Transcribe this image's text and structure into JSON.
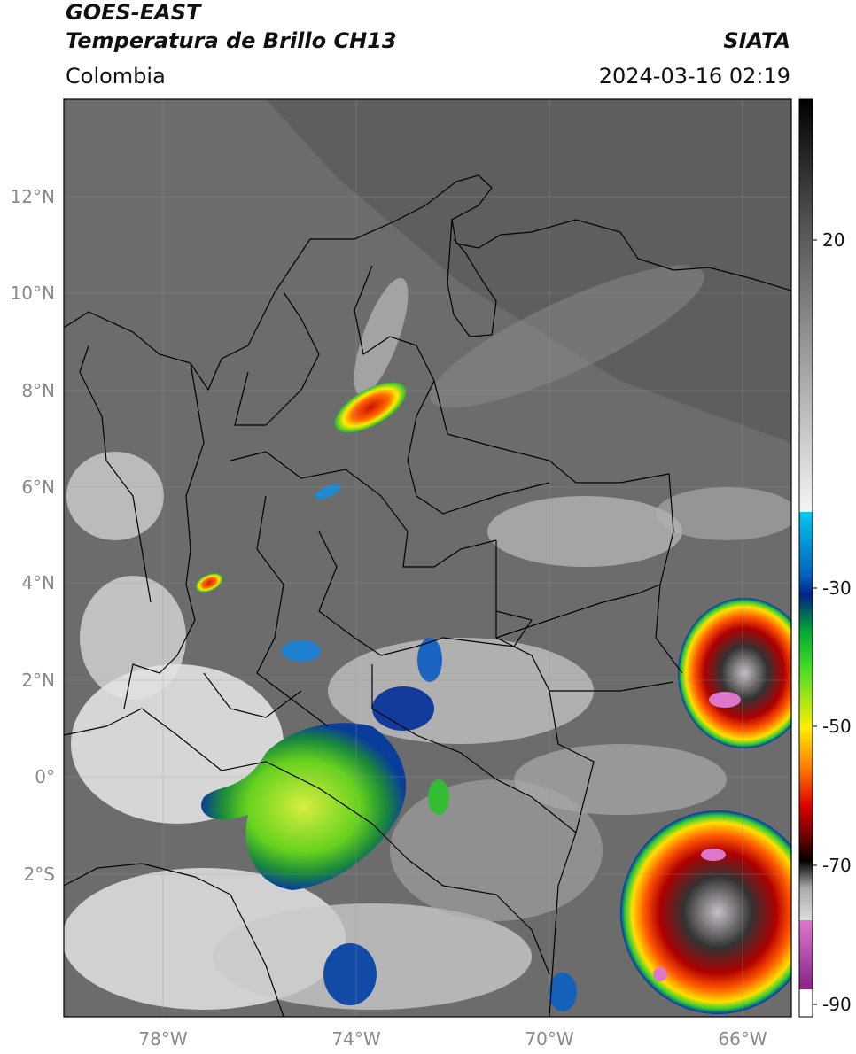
{
  "header": {
    "title_line1": "GOES-EAST",
    "title_line2": "Temperatura de Brillo CH13",
    "source": "SIATA",
    "region": "Colombia",
    "timestamp": "2024-03-16 02:19"
  },
  "axes": {
    "lat_labels": [
      "12°N",
      "10°N",
      "8°N",
      "6°N",
      "4°N",
      "2°N",
      "0°",
      "2°S"
    ],
    "lon_labels": [
      "78°W",
      "74°W",
      "70°W",
      "66°W"
    ]
  },
  "colorbar": {
    "tick_labels": [
      "20",
      "-30",
      "-50",
      "-70",
      "-90"
    ],
    "stops": [
      "#000000",
      "#777777",
      "#f5f5f5",
      "#00b8ee",
      "#003399",
      "#00cc33",
      "#ffee00",
      "#ff6600",
      "#cc0000",
      "#220000",
      "#cccccc",
      "#dd66cc",
      "#993399"
    ]
  },
  "colors": {
    "cold_cloud_green": "#7fdc1f",
    "cold_cloud_red": "#e02010",
    "border_line": "#000000"
  }
}
